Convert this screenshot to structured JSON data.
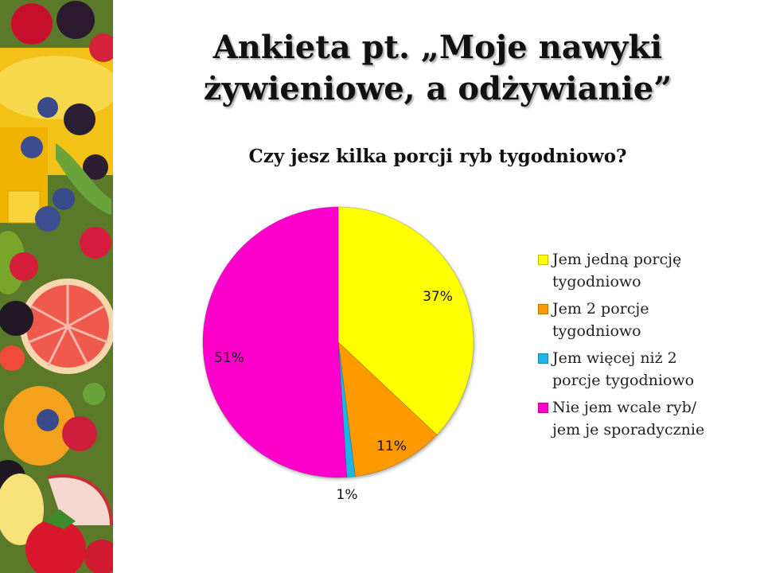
{
  "slide": {
    "title_line1": "Ankieta pt. „Moje nawyki",
    "title_line2": "żywieniowe, a odżywianie”"
  },
  "chart_data": {
    "type": "pie",
    "title": "Czy jesz kilka porcji ryb tygodniowo?",
    "legend_position": "right",
    "slices": [
      {
        "label": "Jem jedną porcję tygodniowo",
        "legend_lines": [
          "Jem jedną porcję",
          "tygodniowo"
        ],
        "value": 37,
        "value_label": "37%",
        "color": "#FFFF00"
      },
      {
        "label": "Jem 2 porcje tygodniowo",
        "legend_lines": [
          "Jem 2 porcje",
          "tygodniowo"
        ],
        "value": 11,
        "value_label": "11%",
        "color": "#FF9900"
      },
      {
        "label": "Jem więcej niż 2 porcje tygodniowo",
        "legend_lines": [
          "Jem więcej niż 2",
          "porcje tygodniowo"
        ],
        "value": 1,
        "value_label": "1%",
        "color": "#1FB5E8"
      },
      {
        "label": "Nie jem wcale ryb/ jem je sporadycznie",
        "legend_lines": [
          "Nie jem wcale ryb/",
          "jem je sporadycznie"
        ],
        "value": 51,
        "value_label": "51%",
        "color": "#FF00CC"
      }
    ]
  }
}
